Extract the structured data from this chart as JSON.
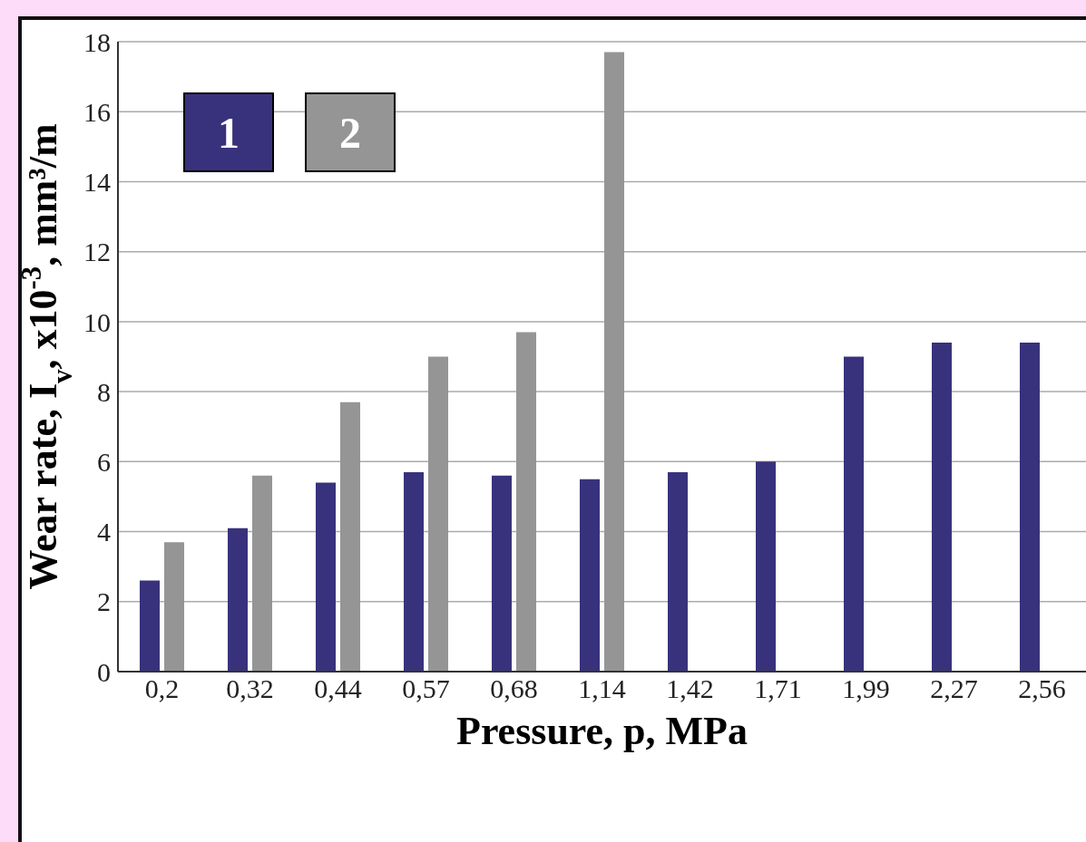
{
  "chart_data": {
    "type": "bar",
    "xlabel": "Pressure, p, MPa",
    "ylabel": "Wear rate, I$_{v}$, x10$^{-3}$, mm³/m",
    "categories": [
      "0,2",
      "0,32",
      "0,44",
      "0,57",
      "0,68",
      "1,14",
      "1,42",
      "1,71",
      "1,99",
      "2,27",
      "2,56"
    ],
    "series": [
      {
        "name": "1",
        "color": "#38327c",
        "values": [
          2.6,
          4.1,
          5.4,
          5.7,
          5.6,
          5.5,
          5.7,
          6.0,
          9.0,
          9.4,
          9.4
        ]
      },
      {
        "name": "2",
        "color": "#959595",
        "values": [
          3.7,
          5.6,
          7.7,
          9.0,
          9.7,
          17.7,
          null,
          null,
          null,
          null,
          null
        ]
      }
    ],
    "ylim": [
      0,
      18
    ],
    "yticks": [
      0,
      2,
      4,
      6,
      8,
      10,
      12,
      14,
      16,
      18
    ],
    "grid": "y",
    "legend": "top left"
  }
}
